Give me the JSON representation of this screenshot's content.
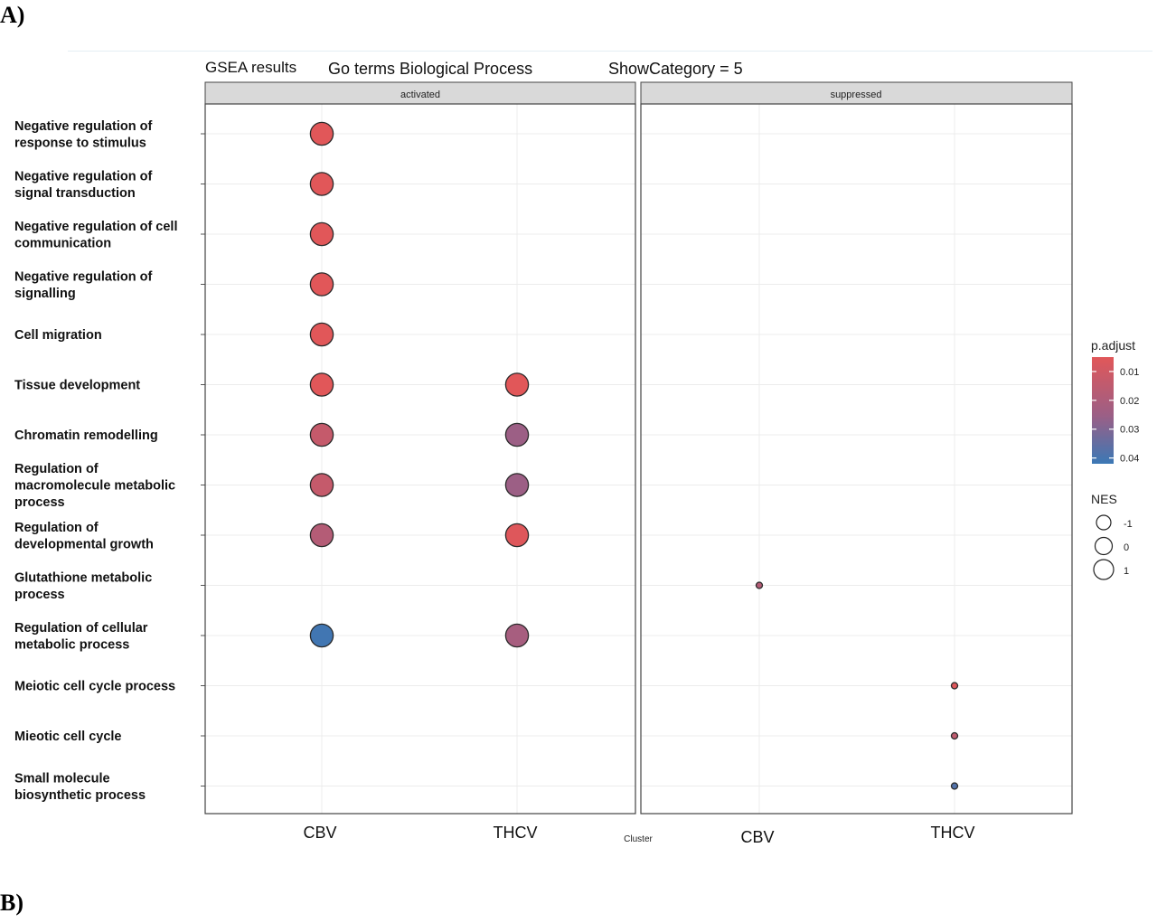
{
  "panel_labels": {
    "a": "A)",
    "b": "B)"
  },
  "chart_data": {
    "type": "scatter",
    "title_parts": [
      "GSEA results",
      "Go terms Biological Process",
      "ShowCategory = 5"
    ],
    "xlabel": "Cluster",
    "facets": [
      "activated",
      "suppressed"
    ],
    "x_categories": [
      "CBV",
      "THCV"
    ],
    "terms": [
      [
        "Negative regulation of",
        "response to stimulus"
      ],
      [
        "Negative regulation of",
        "signal transduction"
      ],
      [
        "Negative regulation of cell",
        "communication"
      ],
      [
        "Negative regulation of",
        "signalling"
      ],
      [
        "Cell migration"
      ],
      [
        "Tissue development"
      ],
      [
        "Chromatin remodelling"
      ],
      [
        "Regulation of",
        "macromolecule metabolic",
        "process"
      ],
      [
        "Regulation of",
        "developmental growth"
      ],
      [
        "Glutathione metabolic",
        "process"
      ],
      [
        "Regulation of cellular",
        "metabolic process"
      ],
      [
        "Meiotic cell cycle process"
      ],
      [
        "Mieotic cell cycle"
      ],
      [
        "Small molecule",
        "biosynthetic process"
      ]
    ],
    "points": [
      {
        "facet": "activated",
        "cluster": "CBV",
        "term_index": 0,
        "p_adjust": 0.005,
        "NES": 1.5
      },
      {
        "facet": "activated",
        "cluster": "CBV",
        "term_index": 1,
        "p_adjust": 0.005,
        "NES": 1.5
      },
      {
        "facet": "activated",
        "cluster": "CBV",
        "term_index": 2,
        "p_adjust": 0.005,
        "NES": 1.5
      },
      {
        "facet": "activated",
        "cluster": "CBV",
        "term_index": 3,
        "p_adjust": 0.005,
        "NES": 1.5
      },
      {
        "facet": "activated",
        "cluster": "CBV",
        "term_index": 4,
        "p_adjust": 0.005,
        "NES": 1.5
      },
      {
        "facet": "activated",
        "cluster": "CBV",
        "term_index": 5,
        "p_adjust": 0.005,
        "NES": 1.5
      },
      {
        "facet": "activated",
        "cluster": "CBV",
        "term_index": 6,
        "p_adjust": 0.013,
        "NES": 1.5
      },
      {
        "facet": "activated",
        "cluster": "CBV",
        "term_index": 7,
        "p_adjust": 0.013,
        "NES": 1.5
      },
      {
        "facet": "activated",
        "cluster": "CBV",
        "term_index": 8,
        "p_adjust": 0.018,
        "NES": 1.5
      },
      {
        "facet": "activated",
        "cluster": "CBV",
        "term_index": 10,
        "p_adjust": 0.041,
        "NES": 1.5
      },
      {
        "facet": "activated",
        "cluster": "THCV",
        "term_index": 5,
        "p_adjust": 0.005,
        "NES": 1.5
      },
      {
        "facet": "activated",
        "cluster": "THCV",
        "term_index": 6,
        "p_adjust": 0.025,
        "NES": 1.5
      },
      {
        "facet": "activated",
        "cluster": "THCV",
        "term_index": 7,
        "p_adjust": 0.025,
        "NES": 1.5
      },
      {
        "facet": "activated",
        "cluster": "THCV",
        "term_index": 8,
        "p_adjust": 0.006,
        "NES": 1.5
      },
      {
        "facet": "activated",
        "cluster": "THCV",
        "term_index": 10,
        "p_adjust": 0.022,
        "NES": 1.5
      },
      {
        "facet": "suppressed",
        "cluster": "CBV",
        "term_index": 9,
        "p_adjust": 0.018,
        "NES": -1.6
      },
      {
        "facet": "suppressed",
        "cluster": "THCV",
        "term_index": 11,
        "p_adjust": 0.006,
        "NES": -1.7
      },
      {
        "facet": "suppressed",
        "cluster": "THCV",
        "term_index": 12,
        "p_adjust": 0.015,
        "NES": -1.5
      },
      {
        "facet": "suppressed",
        "cluster": "THCV",
        "term_index": 13,
        "p_adjust": 0.038,
        "NES": -1.5
      }
    ],
    "legend": {
      "color_title": "p.adjust",
      "color_ticks": [
        0.01,
        0.02,
        0.03,
        0.04
      ],
      "color_tick_labels": [
        "0.01",
        "0.02",
        "0.03",
        "0.04"
      ],
      "color_range": [
        0.005,
        0.042
      ],
      "colors": {
        "low": "#e15759",
        "high": "#3b78b5"
      },
      "size_title": "NES",
      "size_values": [
        -1,
        0,
        1
      ],
      "size_labels": [
        "-1",
        "0",
        "1"
      ]
    }
  }
}
